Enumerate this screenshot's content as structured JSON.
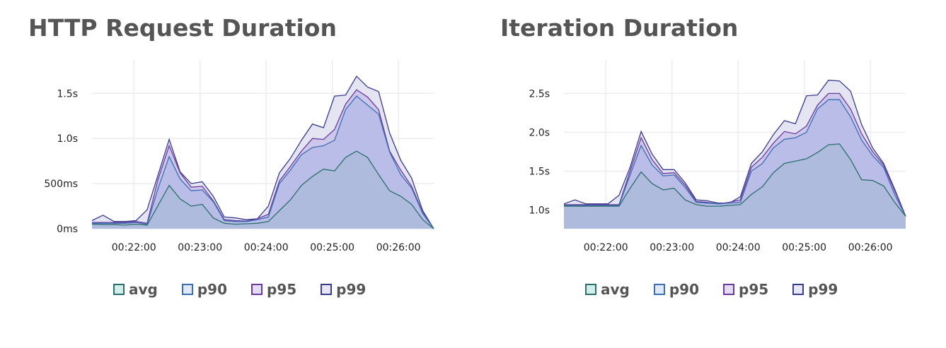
{
  "legend": [
    {
      "name": "avg",
      "stroke": "#2a6f6e",
      "fill": "#d3ede8"
    },
    {
      "name": "p90",
      "stroke": "#3b6eb0",
      "fill": "#dfe8f5"
    },
    {
      "name": "p95",
      "stroke": "#6a3a9c",
      "fill": "#e5dbf2"
    },
    {
      "name": "p99",
      "stroke": "#3a3c8e",
      "fill": "#e6e6f4"
    }
  ],
  "colors": {
    "grid": "#ececf2",
    "area_avg": "#afbbdc",
    "area_p90": "#b9bde7",
    "area_p95": "#cdc7ec",
    "area_p99": "#e4e4f2"
  },
  "chart_data": [
    {
      "type": "area",
      "title": "HTTP Request Duration",
      "xlabel": "",
      "ylabel": "",
      "x_ticks": [
        "00:22:00",
        "00:23:00",
        "00:24:00",
        "00:25:00",
        "00:26:00"
      ],
      "y_ticks": [
        "0ms",
        "500ms",
        "1.0s",
        "1.5s"
      ],
      "y_tick_values": [
        0,
        500,
        1000,
        1500
      ],
      "ylim": [
        0,
        1870
      ],
      "x": [
        "00:21:22",
        "00:21:32",
        "00:21:42",
        "00:21:52",
        "00:22:02",
        "00:22:12",
        "00:22:22",
        "00:22:32",
        "00:22:42",
        "00:22:52",
        "00:23:02",
        "00:23:12",
        "00:23:22",
        "00:23:32",
        "00:23:42",
        "00:23:52",
        "00:24:02",
        "00:24:12",
        "00:24:22",
        "00:24:32",
        "00:24:42",
        "00:24:52",
        "00:25:02",
        "00:25:12",
        "00:25:22",
        "00:25:32",
        "00:25:42",
        "00:25:52",
        "00:26:02",
        "00:26:12",
        "00:26:22",
        "00:26:32"
      ],
      "grid": true,
      "legend_position": "bottom",
      "series": [
        {
          "name": "avg",
          "values": [
            50,
            45,
            45,
            40,
            50,
            40,
            260,
            480,
            330,
            250,
            270,
            120,
            60,
            50,
            55,
            60,
            80,
            200,
            320,
            480,
            580,
            660,
            640,
            790,
            860,
            790,
            600,
            420,
            360,
            270,
            100,
            0
          ]
        },
        {
          "name": "p90",
          "values": [
            60,
            60,
            60,
            60,
            70,
            50,
            450,
            800,
            550,
            420,
            430,
            300,
            90,
            80,
            80,
            100,
            130,
            500,
            650,
            820,
            900,
            920,
            980,
            1320,
            1470,
            1370,
            1270,
            850,
            600,
            450,
            170,
            0
          ]
        },
        {
          "name": "p95",
          "values": [
            70,
            70,
            70,
            70,
            80,
            60,
            550,
            920,
            620,
            460,
            470,
            310,
            100,
            90,
            85,
            110,
            160,
            530,
            690,
            860,
            1000,
            990,
            1100,
            1380,
            1540,
            1460,
            1320,
            860,
            650,
            470,
            180,
            0
          ]
        },
        {
          "name": "p99",
          "values": [
            90,
            150,
            80,
            80,
            90,
            210,
            600,
            990,
            630,
            500,
            520,
            360,
            130,
            120,
            100,
            110,
            250,
            620,
            780,
            980,
            1160,
            1120,
            1470,
            1480,
            1690,
            1570,
            1520,
            1060,
            760,
            560,
            200,
            0
          ]
        }
      ]
    },
    {
      "type": "area",
      "title": "Iteration Duration",
      "xlabel": "",
      "ylabel": "",
      "x_ticks": [
        "00:22:00",
        "00:23:00",
        "00:24:00",
        "00:25:00",
        "00:26:00"
      ],
      "y_ticks": [
        "1.0s",
        "1.5s",
        "2.0s",
        "2.5s"
      ],
      "y_tick_values": [
        1.0,
        1.5,
        2.0,
        2.5
      ],
      "ylim": [
        0.76,
        2.93
      ],
      "x": [
        "00:21:22",
        "00:21:32",
        "00:21:42",
        "00:21:52",
        "00:22:02",
        "00:22:12",
        "00:22:22",
        "00:22:32",
        "00:22:42",
        "00:22:52",
        "00:23:02",
        "00:23:12",
        "00:23:22",
        "00:23:32",
        "00:23:42",
        "00:23:52",
        "00:24:02",
        "00:24:12",
        "00:24:22",
        "00:24:32",
        "00:24:42",
        "00:24:52",
        "00:25:02",
        "00:25:12",
        "00:25:22",
        "00:25:32",
        "00:25:42",
        "00:25:52",
        "00:26:02",
        "00:26:12",
        "00:26:22",
        "00:26:32"
      ],
      "grid": true,
      "legend_position": "bottom",
      "series": [
        {
          "name": "avg",
          "values": [
            1.05,
            1.05,
            1.05,
            1.05,
            1.05,
            1.05,
            1.28,
            1.49,
            1.34,
            1.26,
            1.28,
            1.13,
            1.07,
            1.05,
            1.05,
            1.06,
            1.07,
            1.2,
            1.3,
            1.48,
            1.6,
            1.63,
            1.66,
            1.74,
            1.84,
            1.85,
            1.65,
            1.39,
            1.38,
            1.31,
            1.1,
            0.92
          ]
        },
        {
          "name": "p90",
          "values": [
            1.06,
            1.06,
            1.06,
            1.06,
            1.06,
            1.06,
            1.45,
            1.83,
            1.58,
            1.44,
            1.45,
            1.29,
            1.1,
            1.09,
            1.08,
            1.09,
            1.1,
            1.5,
            1.6,
            1.8,
            1.91,
            1.93,
            2.0,
            2.3,
            2.42,
            2.42,
            2.2,
            1.9,
            1.7,
            1.55,
            1.2,
            0.92
          ]
        },
        {
          "name": "p95",
          "values": [
            1.07,
            1.07,
            1.07,
            1.07,
            1.07,
            1.07,
            1.5,
            1.93,
            1.65,
            1.47,
            1.48,
            1.32,
            1.11,
            1.1,
            1.08,
            1.1,
            1.13,
            1.55,
            1.68,
            1.86,
            2.01,
            1.98,
            2.08,
            2.35,
            2.5,
            2.5,
            2.3,
            1.98,
            1.75,
            1.58,
            1.25,
            0.92
          ]
        },
        {
          "name": "p99",
          "values": [
            1.08,
            1.13,
            1.08,
            1.08,
            1.08,
            1.19,
            1.55,
            2.01,
            1.72,
            1.52,
            1.52,
            1.35,
            1.13,
            1.12,
            1.09,
            1.09,
            1.17,
            1.6,
            1.75,
            1.97,
            2.15,
            2.11,
            2.47,
            2.48,
            2.67,
            2.66,
            2.53,
            2.1,
            1.8,
            1.6,
            1.27,
            0.92
          ]
        }
      ]
    }
  ]
}
